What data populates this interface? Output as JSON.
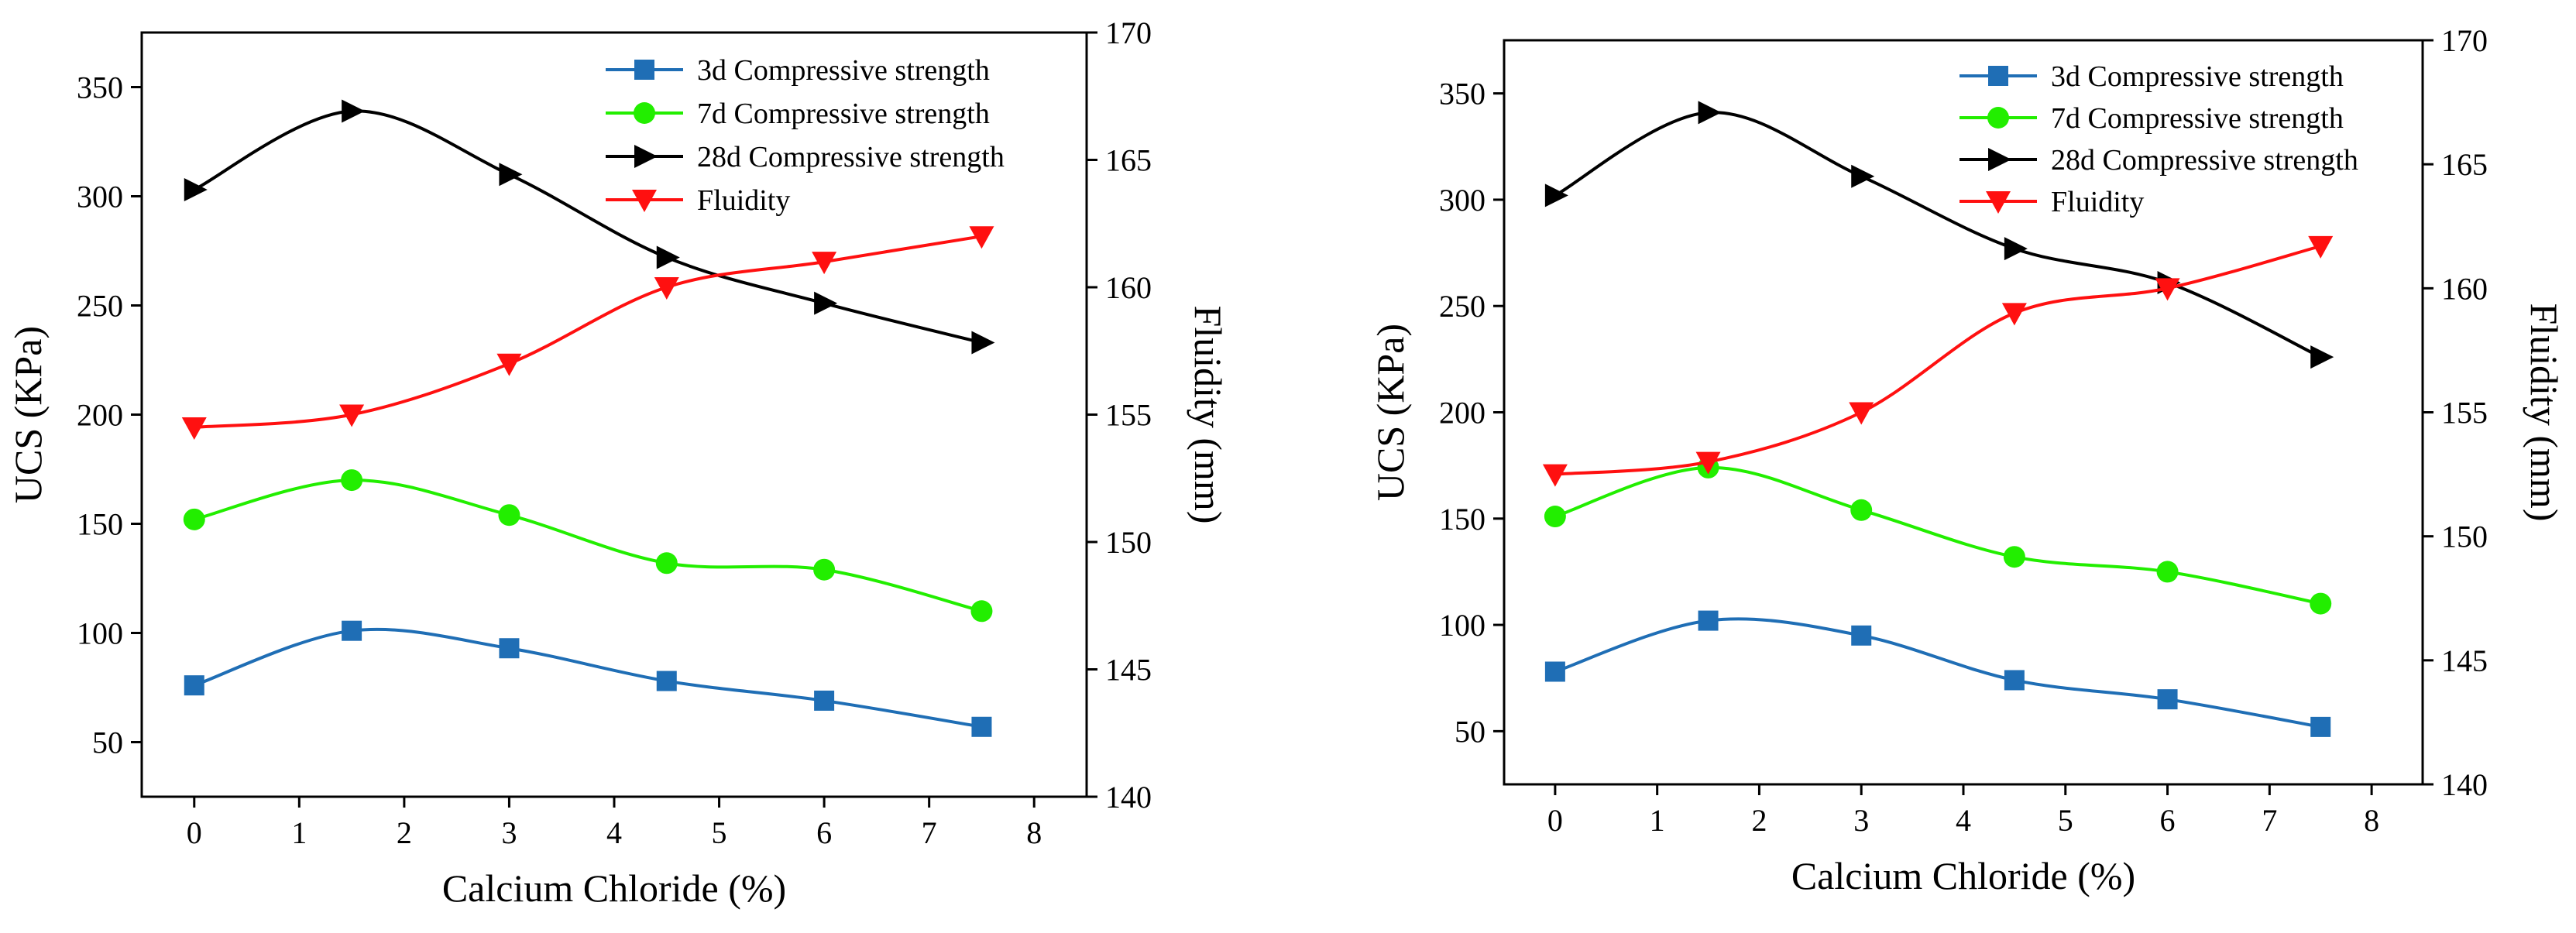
{
  "colors": {
    "3d": "#1f6eb5",
    "7d": "#22ee00",
    "28d": "#000000",
    "fluidity": "#ff1010"
  },
  "chart_data": [
    {
      "type": "line",
      "panel": "left",
      "xlabel": "Calcium Chloride (%)",
      "ylabel": "UCS (KPa)",
      "y2label": "Fluidity (mm)",
      "xlim": [
        -0.5,
        8.5
      ],
      "ylim": [
        25,
        375
      ],
      "y2lim": [
        140,
        170
      ],
      "xticks": [
        "0",
        "1",
        "2",
        "3",
        "4",
        "5",
        "6",
        "7",
        "8"
      ],
      "yticks": [
        "50",
        "100",
        "150",
        "200",
        "250",
        "300",
        "350"
      ],
      "y2ticks": [
        "140",
        "145",
        "150",
        "155",
        "160",
        "165",
        "170"
      ],
      "x": [
        0,
        1.5,
        3,
        4.5,
        6,
        7.5
      ],
      "series": [
        {
          "key": "3d",
          "name": "3d Compressive strength",
          "axis": "left",
          "marker": "square",
          "values": [
            76,
            101,
            93,
            78,
            69,
            57
          ]
        },
        {
          "key": "7d",
          "name": "7d Compressive strength",
          "axis": "left",
          "marker": "circle",
          "values": [
            152,
            170,
            154,
            132,
            129,
            110
          ]
        },
        {
          "key": "28d",
          "name": "28d Compressive strength",
          "axis": "left",
          "marker": "triangle-right",
          "values": [
            303,
            339,
            310,
            272,
            251,
            233
          ]
        },
        {
          "key": "fluidity",
          "name": "Fluidity",
          "axis": "right",
          "marker": "triangle-down",
          "values": [
            154.5,
            155.0,
            157.0,
            160.0,
            161.0,
            162.0
          ]
        }
      ],
      "legend_position": "top-right"
    },
    {
      "type": "line",
      "panel": "right",
      "xlabel": "Calcium Chloride (%)",
      "ylabel": "UCS (KPa)",
      "y2label": "Fluidity (mm)",
      "xlim": [
        -0.5,
        8.5
      ],
      "ylim": [
        25,
        375
      ],
      "y2lim": [
        140,
        170
      ],
      "xticks": [
        "0",
        "1",
        "2",
        "3",
        "4",
        "5",
        "6",
        "7",
        "8"
      ],
      "yticks": [
        "50",
        "100",
        "150",
        "200",
        "250",
        "300",
        "350"
      ],
      "y2ticks": [
        "140",
        "145",
        "150",
        "155",
        "160",
        "165",
        "170"
      ],
      "x": [
        0,
        1.5,
        3,
        4.5,
        6,
        7.5
      ],
      "series": [
        {
          "key": "3d",
          "name": "3d Compressive strength",
          "axis": "left",
          "marker": "square",
          "values": [
            78,
            102,
            95,
            74,
            65,
            52
          ]
        },
        {
          "key": "7d",
          "name": "7d Compressive strength",
          "axis": "left",
          "marker": "circle",
          "values": [
            151,
            174,
            154,
            132,
            125,
            110
          ]
        },
        {
          "key": "28d",
          "name": "28d Compressive strength",
          "axis": "left",
          "marker": "triangle-right",
          "values": [
            302,
            341,
            311,
            277,
            261,
            226
          ]
        },
        {
          "key": "fluidity",
          "name": "Fluidity",
          "axis": "right",
          "marker": "triangle-down",
          "values": [
            152.5,
            153.0,
            155.0,
            159.0,
            160.0,
            161.7
          ]
        }
      ],
      "legend_position": "top-right"
    }
  ]
}
